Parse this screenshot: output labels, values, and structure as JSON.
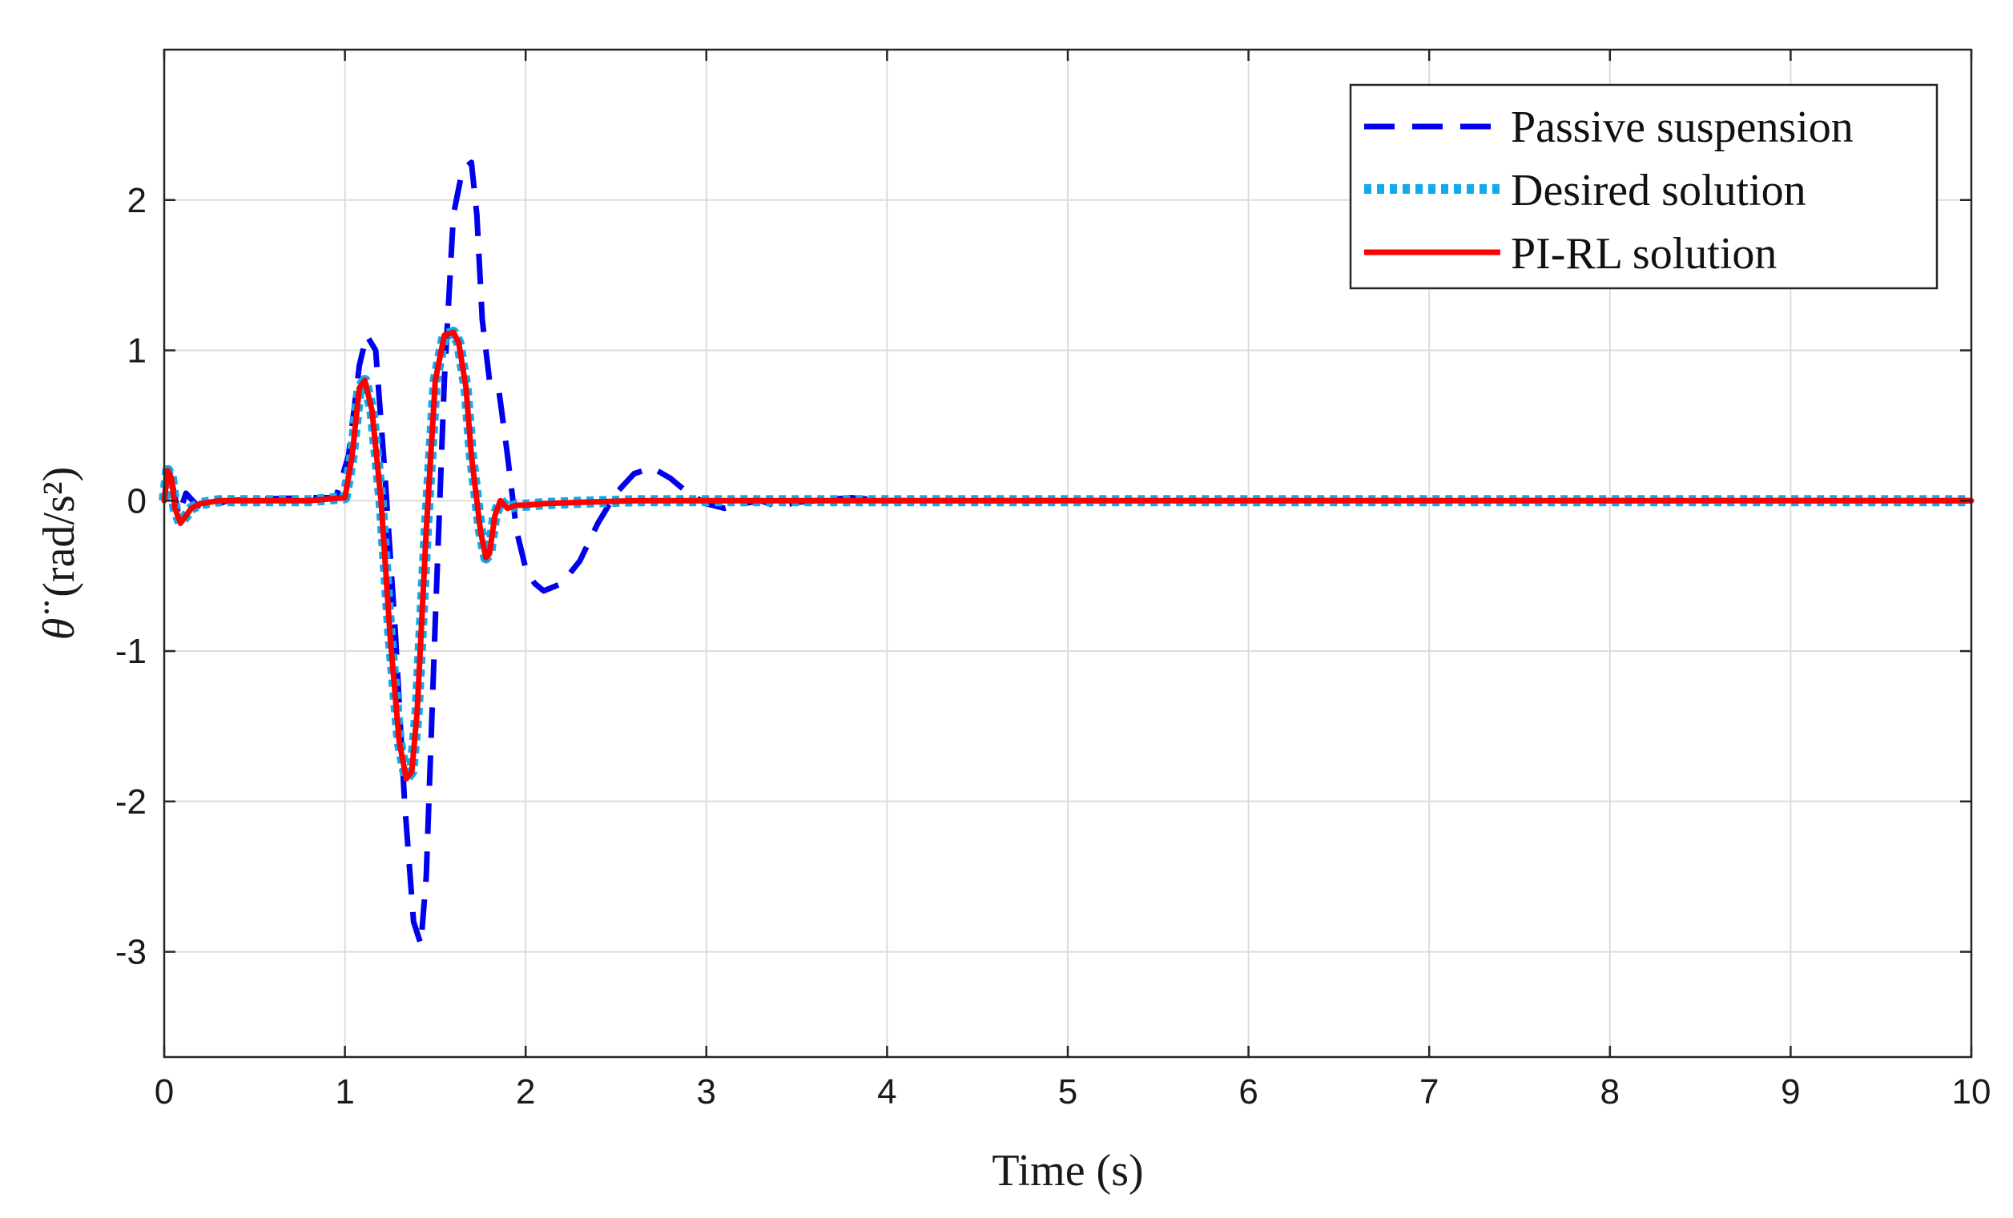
{
  "chart_data": {
    "type": "line",
    "xlabel": "Time (s)",
    "ylabel": "(rad/s²)",
    "ylabel_symbol": "θ̈",
    "xlim": [
      0,
      10
    ],
    "ylim": [
      -3.7,
      3.0
    ],
    "xticks": [
      0,
      1,
      2,
      3,
      4,
      5,
      6,
      7,
      8,
      9,
      10
    ],
    "yticks": [
      -3,
      -2,
      -1,
      0,
      1,
      2
    ],
    "grid": true,
    "legend_position": "top-right",
    "series": [
      {
        "name": "Passive suspension",
        "color": "#0000ee",
        "style": "dashed",
        "x": [
          0,
          0.02,
          0.05,
          0.08,
          0.12,
          0.18,
          0.25,
          0.35,
          0.5,
          0.8,
          0.95,
          1.02,
          1.08,
          1.12,
          1.17,
          1.22,
          1.28,
          1.33,
          1.38,
          1.42,
          1.45,
          1.5,
          1.55,
          1.6,
          1.65,
          1.7,
          1.73,
          1.76,
          1.8,
          1.85,
          1.9,
          1.95,
          2.0,
          2.05,
          2.1,
          2.2,
          2.3,
          2.4,
          2.5,
          2.6,
          2.7,
          2.8,
          2.9,
          3.0,
          3.1,
          3.2,
          3.3,
          3.4,
          3.5,
          3.6,
          3.7,
          3.8,
          3.9,
          4.0,
          5.0,
          6.0,
          7.0,
          8.0,
          9.0,
          10.0
        ],
        "y": [
          0,
          0.22,
          0.08,
          -0.1,
          0.05,
          -0.03,
          -0.04,
          0.0,
          0.01,
          0.02,
          0.02,
          0.3,
          0.9,
          1.1,
          1.0,
          0.2,
          -0.9,
          -2.0,
          -2.8,
          -2.95,
          -2.5,
          -0.8,
          0.8,
          1.9,
          2.2,
          2.25,
          1.9,
          1.2,
          0.8,
          0.75,
          0.3,
          -0.2,
          -0.45,
          -0.55,
          -0.6,
          -0.55,
          -0.4,
          -0.15,
          0.05,
          0.18,
          0.22,
          0.15,
          0.05,
          -0.02,
          -0.05,
          -0.02,
          0.0,
          -0.04,
          -0.01,
          0.0,
          0.01,
          0.02,
          0.01,
          0.0,
          0.0,
          0.0,
          0.0,
          0.0,
          0.0,
          0.0
        ]
      },
      {
        "name": "Desired solution",
        "color": "#10aaee",
        "style": "dotted",
        "x": [
          0,
          0.02,
          0.04,
          0.06,
          0.09,
          0.12,
          0.15,
          0.2,
          0.3,
          0.5,
          0.8,
          1.0,
          1.04,
          1.08,
          1.11,
          1.15,
          1.2,
          1.25,
          1.3,
          1.34,
          1.37,
          1.4,
          1.45,
          1.5,
          1.55,
          1.6,
          1.63,
          1.67,
          1.7,
          1.75,
          1.78,
          1.8,
          1.83,
          1.86,
          1.9,
          1.95,
          2.0,
          2.1,
          2.3,
          2.6,
          3.0,
          4.0,
          5.0,
          6.0,
          7.0,
          8.0,
          9.0,
          10.0
        ],
        "y": [
          0,
          0.2,
          0.15,
          -0.05,
          -0.15,
          -0.1,
          -0.05,
          -0.02,
          0.0,
          0.0,
          0.0,
          0.02,
          0.3,
          0.75,
          0.8,
          0.6,
          0.0,
          -0.9,
          -1.6,
          -1.85,
          -1.8,
          -1.4,
          -0.2,
          0.8,
          1.1,
          1.12,
          1.05,
          0.75,
          0.3,
          -0.2,
          -0.38,
          -0.35,
          -0.1,
          0.0,
          -0.05,
          -0.03,
          -0.03,
          -0.02,
          -0.01,
          0.0,
          0.0,
          0.0,
          0.0,
          0.0,
          0.0,
          0.0,
          0.0,
          0.0
        ]
      },
      {
        "name": "PI-RL solution",
        "color": "#ff0000",
        "style": "solid",
        "x": [
          0,
          0.02,
          0.04,
          0.06,
          0.09,
          0.12,
          0.15,
          0.2,
          0.3,
          0.5,
          0.8,
          1.0,
          1.04,
          1.08,
          1.11,
          1.15,
          1.2,
          1.25,
          1.3,
          1.34,
          1.37,
          1.4,
          1.45,
          1.5,
          1.55,
          1.6,
          1.63,
          1.67,
          1.7,
          1.75,
          1.78,
          1.8,
          1.83,
          1.86,
          1.9,
          1.95,
          2.0,
          2.1,
          2.3,
          2.6,
          3.0,
          4.0,
          5.0,
          6.0,
          7.0,
          8.0,
          9.0,
          10.0
        ],
        "y": [
          0,
          0.2,
          0.15,
          -0.05,
          -0.15,
          -0.1,
          -0.05,
          -0.02,
          0.0,
          0.0,
          0.0,
          0.02,
          0.3,
          0.75,
          0.8,
          0.6,
          0.0,
          -0.9,
          -1.6,
          -1.85,
          -1.8,
          -1.4,
          -0.2,
          0.8,
          1.1,
          1.12,
          1.05,
          0.75,
          0.3,
          -0.2,
          -0.38,
          -0.35,
          -0.1,
          0.0,
          -0.05,
          -0.03,
          -0.03,
          -0.02,
          -0.01,
          0.0,
          0.0,
          0.0,
          0.0,
          0.0,
          0.0,
          0.0,
          0.0,
          0.0
        ]
      }
    ]
  }
}
